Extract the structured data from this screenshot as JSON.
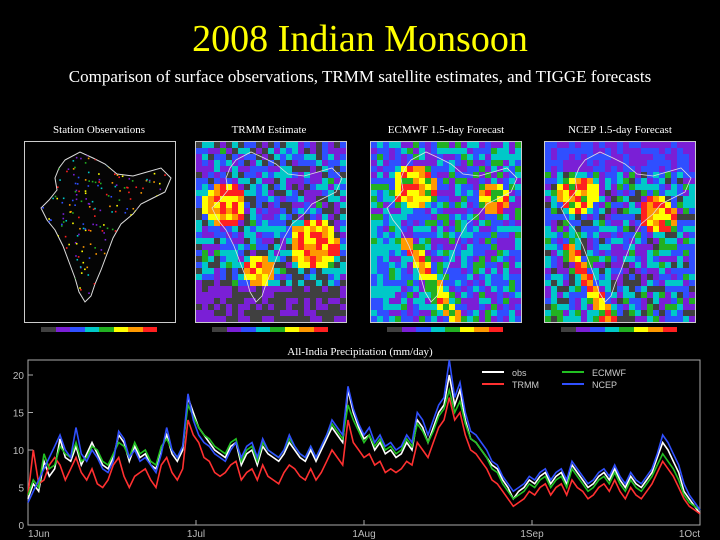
{
  "title": "2008 Indian Monsoon",
  "subtitle": "Comparison of surface observations, TRMM satellite estimates, and TIGGE forecasts",
  "maps": [
    {
      "label": "Station Observations",
      "kind": "stations"
    },
    {
      "label": "TRMM Estimate",
      "kind": "trmm"
    },
    {
      "label": "ECMWF 1.5-day Forecast",
      "kind": "ecmwf"
    },
    {
      "label": "NCEP 1.5-day Forecast",
      "kind": "ncep"
    }
  ],
  "colors": {
    "title": "#ffff00",
    "background": "#000000",
    "scale": [
      "#404040",
      "#7a1fd6",
      "#2f4fff",
      "#00c8c8",
      "#22b022",
      "#ffff00",
      "#ff9900",
      "#ff2020"
    ]
  },
  "chart_data": {
    "type": "line",
    "title": "All-India Precipitation (mm/day)",
    "x_ticks": [
      "1Jun",
      "1Jul",
      "1Aug",
      "1Sep",
      "1Oct"
    ],
    "ylim": [
      0,
      22
    ],
    "y_ticks": [
      0,
      5,
      10,
      15,
      20
    ],
    "legend": {
      "placement": "top-right"
    },
    "series": [
      {
        "name": "obs",
        "color": "#ffffff",
        "values": [
          3.5,
          5.5,
          4.5,
          8.5,
          6.5,
          7.5,
          11.5,
          9,
          8.5,
          10.5,
          8,
          9.5,
          11,
          9.5,
          8,
          7.5,
          9,
          12,
          11,
          8.5,
          10.5,
          9,
          9.5,
          8,
          7.5,
          10,
          12,
          9.5,
          8.5,
          10,
          17,
          15,
          13,
          12,
          11,
          10,
          9.5,
          9,
          10.5,
          11,
          8,
          9.5,
          10,
          8,
          10.5,
          9.5,
          9,
          8.5,
          9.5,
          11,
          10,
          9,
          8.5,
          10,
          8.5,
          10,
          11.5,
          13,
          12,
          11,
          18,
          15,
          13,
          11.5,
          12,
          10,
          11,
          9.5,
          10,
          9,
          9.5,
          11,
          10,
          14,
          13,
          11,
          13,
          15,
          16,
          20,
          16,
          18,
          14,
          11.5,
          11,
          10,
          9,
          8,
          7.5,
          6,
          5,
          3.5,
          4.5,
          5,
          6,
          5.5,
          6.5,
          7,
          5.5,
          6.5,
          7,
          5.5,
          8,
          7,
          6,
          5,
          5.5,
          6.5,
          7,
          6,
          7.5,
          6,
          5,
          6.5,
          5.5,
          5,
          6,
          7,
          9,
          11,
          10,
          8.5,
          7,
          4.5,
          3.5,
          2.5,
          1.5
        ]
      },
      {
        "name": "TRMM",
        "color": "#ff3030",
        "values": [
          4,
          10,
          5.5,
          6,
          8,
          9,
          8,
          6,
          7.5,
          9,
          7,
          6,
          7.5,
          5.5,
          5,
          6,
          8,
          9,
          6.5,
          5,
          6.5,
          7,
          7.5,
          6,
          5,
          8,
          9,
          7,
          6,
          7.5,
          14,
          12,
          11,
          9,
          8.5,
          7,
          6.5,
          7,
          8,
          8.5,
          6,
          7,
          7.5,
          6,
          8,
          6.5,
          6,
          5.5,
          7,
          8,
          7.5,
          6.5,
          6,
          7.5,
          6,
          7,
          8.5,
          10,
          9,
          8,
          14,
          11,
          10,
          9,
          9.5,
          8,
          8.5,
          7,
          7.5,
          7,
          7.5,
          8.5,
          8,
          11,
          10,
          9,
          11,
          13,
          14,
          17,
          14,
          15,
          12,
          10,
          9.5,
          8.5,
          7.5,
          6,
          5.5,
          4.5,
          3.5,
          2.5,
          3,
          3.5,
          4.5,
          4,
          5,
          5.5,
          4,
          5,
          5.5,
          4,
          6,
          5,
          4.5,
          3.5,
          4,
          5,
          5.5,
          4.5,
          6,
          4.5,
          3.5,
          5,
          4,
          3.5,
          4.5,
          5.5,
          7,
          8.5,
          7.5,
          6.5,
          5,
          3.5,
          2.5,
          2,
          1.5
        ]
      },
      {
        "name": "ECMWF",
        "color": "#22c022",
        "values": [
          4,
          6,
          5,
          9.5,
          7.5,
          8,
          10.5,
          9.5,
          9,
          11,
          8.5,
          9,
          10.5,
          10,
          8.5,
          8,
          9.5,
          11,
          10.5,
          9,
          11,
          9.5,
          10,
          8.5,
          8,
          10.5,
          11.5,
          10,
          9,
          10.5,
          16,
          14.5,
          13,
          12,
          11.5,
          10.5,
          10,
          9.5,
          11,
          11.5,
          8.5,
          10,
          10.5,
          8.5,
          11,
          10,
          9.5,
          9,
          10,
          11.5,
          10.5,
          9.5,
          9,
          10.5,
          9,
          10.5,
          12,
          13.5,
          12.5,
          11.5,
          16,
          14,
          12.5,
          11,
          12,
          10.5,
          11.5,
          10,
          10.5,
          9.5,
          10,
          11.5,
          10.5,
          13.5,
          12.5,
          11,
          12.5,
          14.5,
          15.5,
          18,
          15,
          16.5,
          13.5,
          11.5,
          11,
          10,
          9,
          7.5,
          7,
          5.5,
          4.5,
          3.5,
          4,
          4.5,
          5.5,
          5,
          6,
          6.5,
          5,
          6,
          6.5,
          5,
          7.5,
          6.5,
          5.5,
          4.5,
          5,
          6,
          6.5,
          5.5,
          7,
          5.5,
          4.5,
          6,
          5,
          4.5,
          5.5,
          6.5,
          8,
          9.5,
          8.5,
          7.5,
          6,
          4,
          3,
          2.5,
          2
        ]
      },
      {
        "name": "NCEP",
        "color": "#3050ff",
        "values": [
          3,
          4.5,
          6,
          7.5,
          9,
          10.5,
          12,
          10,
          9,
          13,
          9.5,
          8.5,
          10,
          9,
          7.5,
          7,
          8.5,
          12.5,
          11.5,
          9,
          10,
          8.5,
          9,
          8,
          7,
          9.5,
          13,
          10,
          9,
          10.5,
          17.5,
          14,
          12,
          11,
          10.5,
          9.5,
          9,
          8.5,
          10,
          11,
          9,
          10.5,
          11,
          9,
          11.5,
          10,
          9.5,
          9,
          10,
          12,
          10.5,
          9.5,
          9,
          10.5,
          9,
          10.5,
          12,
          14,
          13,
          12,
          18.5,
          15.5,
          13.5,
          12,
          13,
          11,
          12,
          10.5,
          11,
          10,
          10.5,
          12,
          11,
          15,
          14,
          12,
          14,
          16,
          17,
          22,
          17,
          19,
          15,
          12.5,
          12,
          11,
          10,
          8.5,
          8,
          6.5,
          5.5,
          4.5,
          5,
          5.5,
          6.5,
          6,
          7,
          7.5,
          6,
          7,
          7.5,
          6,
          8.5,
          7.5,
          6.5,
          5.5,
          6,
          7,
          7.5,
          6.5,
          8,
          6.5,
          5.5,
          7,
          6,
          5.5,
          6.5,
          7.5,
          9.5,
          12,
          11,
          9.5,
          8,
          5.5,
          4,
          3,
          2
        ]
      }
    ]
  }
}
